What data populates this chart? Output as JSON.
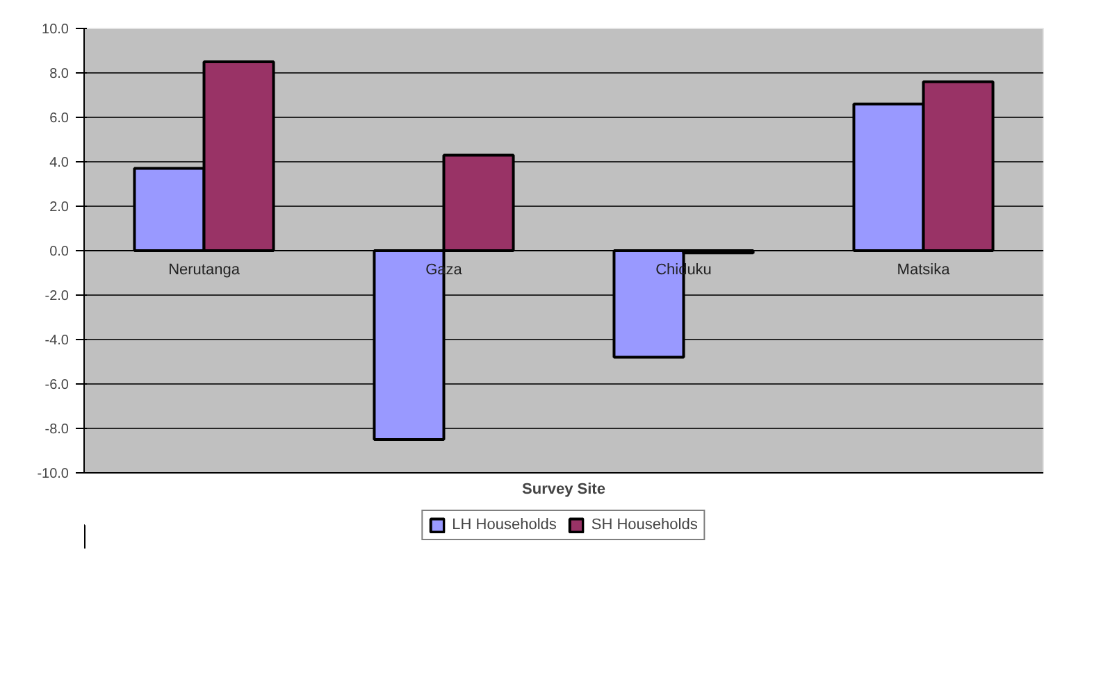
{
  "chart_data": {
    "type": "bar",
    "xlabel": "Survey Site",
    "categories": [
      "Nerutanga",
      "Gaza",
      "Chiduku",
      "Matsika"
    ],
    "series": [
      {
        "name": "LH Households",
        "color": "#9999ff",
        "values": [
          3.7,
          -8.5,
          -4.8,
          6.6
        ]
      },
      {
        "name": "SH Households",
        "color": "#993366",
        "values": [
          8.5,
          4.3,
          -0.1,
          7.6
        ]
      }
    ],
    "ylim": [
      -10,
      10
    ],
    "yticks": [
      {
        "value": -10,
        "label": "-10.0"
      },
      {
        "value": -8,
        "label": "-8.0"
      },
      {
        "value": -6,
        "label": "-6.0"
      },
      {
        "value": -4,
        "label": "-4.0"
      },
      {
        "value": -2,
        "label": "-2.0"
      },
      {
        "value": 0,
        "label": "0.0"
      },
      {
        "value": 2,
        "label": "2.0"
      },
      {
        "value": 4,
        "label": "4.0"
      },
      {
        "value": 6,
        "label": "6.0"
      },
      {
        "value": 8,
        "label": "8.0"
      },
      {
        "value": 10,
        "label": "10.0"
      }
    ],
    "grid": "y",
    "legend": "bottom"
  }
}
